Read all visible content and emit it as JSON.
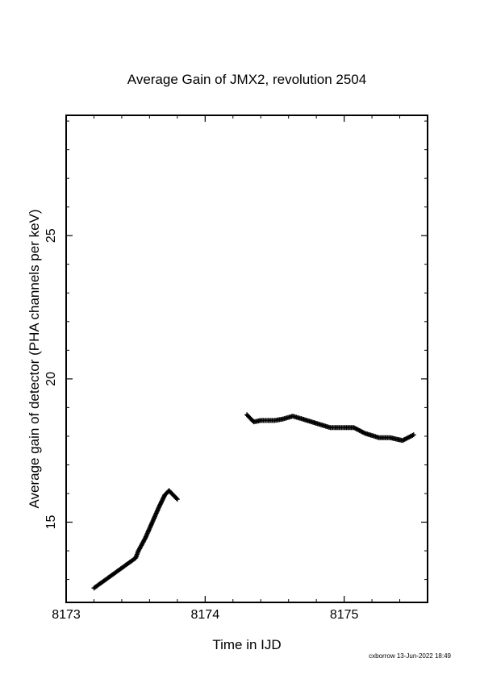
{
  "footer_text": "cxborrow 13-Jun-2022 18:49",
  "colors": {
    "background": "#ffffff",
    "axes": "#000000",
    "points": "#000000"
  },
  "chart_data": {
    "type": "scatter",
    "title": "Average Gain of JMX2, revolution 2504",
    "xlabel": "Time in IJD",
    "ylabel": "Average gain of detector (PHA channels per keV)",
    "xlim": [
      8173.0,
      8175.6
    ],
    "ylim": [
      12.2,
      29.2
    ],
    "grid": false,
    "marker": "+",
    "x_ticks": [
      8173,
      8174,
      8175
    ],
    "y_ticks": [
      15,
      20,
      25
    ],
    "series": [
      {
        "points": [
          [
            8173.2,
            12.7
          ],
          [
            8173.3,
            13.05
          ],
          [
            8173.4,
            13.4
          ],
          [
            8173.5,
            13.75
          ],
          [
            8173.52,
            14.0
          ],
          [
            8173.57,
            14.45
          ],
          [
            8173.62,
            15.0
          ],
          [
            8173.67,
            15.55
          ],
          [
            8173.71,
            15.95
          ],
          [
            8173.74,
            16.1
          ],
          [
            8173.77,
            15.95
          ],
          [
            8173.8,
            15.8
          ]
        ]
      },
      {
        "points": [
          [
            8174.3,
            18.75
          ],
          [
            8174.35,
            18.5
          ],
          [
            8174.4,
            18.55
          ],
          [
            8174.5,
            18.55
          ],
          [
            8174.56,
            18.6
          ],
          [
            8174.63,
            18.7
          ],
          [
            8174.7,
            18.6
          ],
          [
            8174.8,
            18.45
          ],
          [
            8174.9,
            18.3
          ],
          [
            8175.0,
            18.3
          ],
          [
            8175.07,
            18.3
          ],
          [
            8175.15,
            18.1
          ],
          [
            8175.25,
            17.95
          ],
          [
            8175.33,
            17.95
          ],
          [
            8175.42,
            17.85
          ],
          [
            8175.5,
            18.05
          ]
        ]
      }
    ]
  }
}
